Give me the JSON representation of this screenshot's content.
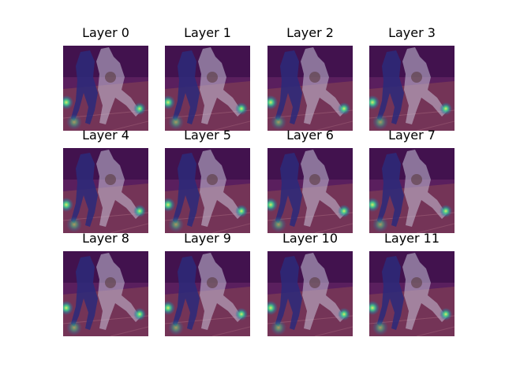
{
  "figure": {
    "panels": [
      {
        "title": "Layer 0",
        "hotspots": [
          "left-edge",
          "right-edge",
          "lower-left"
        ]
      },
      {
        "title": "Layer 1",
        "hotspots": [
          "left-edge",
          "right-edge",
          "lower-left"
        ]
      },
      {
        "title": "Layer 2",
        "hotspots": [
          "left-edge",
          "right-edge",
          "lower-left"
        ]
      },
      {
        "title": "Layer 3",
        "hotspots": [
          "left-edge",
          "right-edge",
          "lower-left"
        ]
      },
      {
        "title": "Layer 4",
        "hotspots": [
          "left-edge",
          "right-edge",
          "lower-left"
        ]
      },
      {
        "title": "Layer 5",
        "hotspots": [
          "left-edge",
          "right-edge",
          "lower-left"
        ]
      },
      {
        "title": "Layer 6",
        "hotspots": [
          "left-edge",
          "right-edge",
          "lower-left"
        ]
      },
      {
        "title": "Layer 7",
        "hotspots": [
          "left-edge",
          "right-edge",
          "lower-left"
        ]
      },
      {
        "title": "Layer 8",
        "hotspots": [
          "left-edge",
          "right-edge",
          "lower-left"
        ]
      },
      {
        "title": "Layer 9",
        "hotspots": [
          "left-edge",
          "right-edge",
          "lower-left"
        ]
      },
      {
        "title": "Layer 10",
        "hotspots": [
          "left-edge",
          "right-edge",
          "lower-left"
        ]
      },
      {
        "title": "Layer 11",
        "hotspots": [
          "left-edge",
          "right-edge",
          "lower-left"
        ]
      }
    ],
    "colors": {
      "background": "#ffffff",
      "overlay_base": "#5a1f5e",
      "overlay_dark": "#3b0f4a",
      "floor": "#7a3a55",
      "player_dark": "#2c2a7a",
      "player_light": "#c9c3d8",
      "hotspot_core": "#d9f06a",
      "hotspot_mid": "#3ecf8e",
      "hotspot_outer": "#2a7fa0"
    }
  }
}
